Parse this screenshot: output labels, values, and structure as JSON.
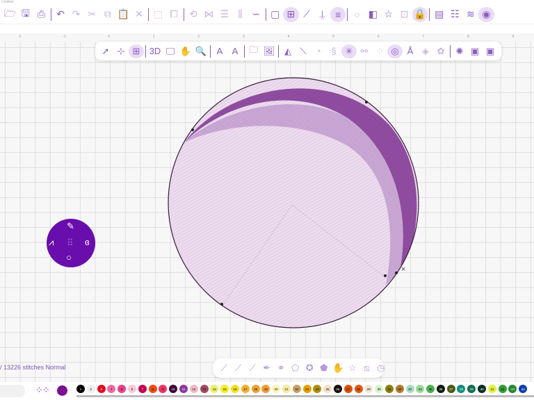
{
  "window": {
    "title": "Untitled"
  },
  "main_toolbar": {
    "groups": [
      [
        {
          "name": "open-icon",
          "g": "🗁"
        },
        {
          "name": "save-icon",
          "g": "🖫"
        },
        {
          "name": "print-icon",
          "g": "⎙"
        }
      ],
      [
        {
          "name": "undo-icon",
          "g": "↶"
        },
        {
          "name": "redo-icon",
          "g": "↷",
          "dim": true
        },
        {
          "name": "cut-icon",
          "g": "✂",
          "dim": true
        },
        {
          "name": "copy-icon",
          "g": "⧉",
          "dim": true
        },
        {
          "name": "paste-icon",
          "g": "📋"
        },
        {
          "name": "delete-icon",
          "g": "✕",
          "dim": true
        }
      ],
      [
        {
          "name": "select-all-icon",
          "g": "⬚",
          "dim": true
        },
        {
          "name": "group-icon",
          "g": "⧠",
          "dim": true
        }
      ],
      [
        {
          "name": "rotate-icon",
          "g": "⟲",
          "dim": true
        },
        {
          "name": "mirror-icon",
          "g": "⋈",
          "dim": true
        },
        {
          "name": "align-icon",
          "g": "☰",
          "dim": true
        },
        {
          "name": "distribute-icon",
          "g": "⫼",
          "dim": true
        },
        {
          "name": "path-icon",
          "g": "∽"
        }
      ],
      [
        {
          "name": "hoop-icon",
          "g": "▢"
        },
        {
          "name": "grid-icon",
          "g": "⊞",
          "act": true
        },
        {
          "name": "ruler-icon",
          "g": "⟋"
        },
        {
          "name": "measure-icon",
          "g": "⍊"
        },
        {
          "name": "units-icon",
          "g": "≡",
          "act": true
        }
      ],
      [
        {
          "name": "circle-icon",
          "g": "○",
          "dim": true
        },
        {
          "name": "color-sort-icon",
          "g": "◧"
        },
        {
          "name": "star-icon",
          "g": "☆"
        },
        {
          "name": "grid-lock-icon",
          "g": "⊡",
          "dim": true
        },
        {
          "name": "lock-icon",
          "g": "🔒",
          "act": true
        }
      ],
      [
        {
          "name": "properties-icon",
          "g": "▤"
        },
        {
          "name": "sequence-icon",
          "g": "☷"
        },
        {
          "name": "layers-icon",
          "g": "≋"
        },
        {
          "name": "thread-icon",
          "g": "◉",
          "act": true
        }
      ]
    ]
  },
  "ruler": {
    "labels": [
      "-2",
      "-1",
      "0",
      "1",
      "2",
      "3",
      "4",
      "5",
      "6",
      "7",
      "8",
      "9"
    ]
  },
  "sub_toolbar": {
    "groups": [
      [
        {
          "name": "pointer-icon",
          "g": "➚"
        },
        {
          "name": "node-select-icon",
          "g": "⊹"
        },
        {
          "name": "transform-icon",
          "g": "⊞",
          "act": true
        }
      ],
      [
        {
          "name": "3d-view-icon",
          "g": "3D"
        },
        {
          "name": "monitor-icon",
          "g": "🖵"
        },
        {
          "name": "pan-hand-icon",
          "g": "✋"
        },
        {
          "name": "zoom-icon",
          "g": "🔍"
        }
      ],
      [
        {
          "name": "text-icon",
          "g": "A"
        },
        {
          "name": "text-path-icon",
          "g": "A"
        }
      ],
      [
        {
          "name": "folder-icon",
          "g": "🗀"
        },
        {
          "name": "image-icon",
          "g": "🖼"
        }
      ],
      [
        {
          "name": "fill-shape-icon",
          "g": "◭"
        },
        {
          "name": "line-tool-icon",
          "g": "⟍"
        },
        {
          "name": "satin-icon",
          "g": "◔",
          "dim": true
        },
        {
          "name": "run-stitch-icon",
          "g": "§",
          "dim": true
        },
        {
          "name": "star-stitch-icon",
          "g": "✳",
          "act": true
        },
        {
          "name": "connect-icon",
          "g": "⚯",
          "dim": true
        },
        {
          "name": "scatter-icon",
          "g": "⁘",
          "dim": true
        },
        {
          "name": "applique-icon",
          "g": "◎",
          "act": true
        },
        {
          "name": "monogram-icon",
          "g": "Å"
        },
        {
          "name": "split-icon",
          "g": "◈",
          "dim": true
        },
        {
          "name": "remove-overlap-icon",
          "g": "✿",
          "dim": true
        }
      ],
      [
        {
          "name": "auto-digitize-icon",
          "g": "✺"
        },
        {
          "name": "edit-image-icon",
          "g": "▣"
        },
        {
          "name": "frame-icon",
          "g": "▣"
        }
      ]
    ]
  },
  "radial_menu": {
    "items": [
      {
        "name": "brush-icon",
        "g": "✎"
      },
      {
        "name": "zigzag-stitch-icon",
        "g": "⩘"
      },
      {
        "name": "curve-icon",
        "g": "ɞ"
      },
      {
        "name": "circle-shape-icon",
        "g": "○"
      },
      {
        "name": "center-handle-icon",
        "g": "⠿"
      }
    ]
  },
  "status": {
    "text": "/ 13226 stitches Normal"
  },
  "shape_toolbar": {
    "items": [
      {
        "name": "line-1-icon",
        "g": "⟋"
      },
      {
        "name": "line-2-icon",
        "g": "⟋"
      },
      {
        "name": "line-3-icon",
        "g": "⟋"
      },
      {
        "name": "pen-icon",
        "g": "✒"
      },
      {
        "name": "link-icon",
        "g": "⚭"
      },
      {
        "name": "pentagon-icon",
        "g": "⬠"
      },
      {
        "name": "badge-icon",
        "g": "✪"
      },
      {
        "name": "house-icon",
        "g": "⬟"
      },
      {
        "name": "hand-icon",
        "g": "✋"
      },
      {
        "name": "star-outline-icon",
        "g": "☆"
      },
      {
        "name": "crop-icon",
        "g": "⧅"
      },
      {
        "name": "timer-icon",
        "g": "◷"
      }
    ]
  },
  "current_color": "#7b1190",
  "palette": [
    {
      "n": "1",
      "c": "#000000",
      "t": "#fff"
    },
    {
      "n": "2",
      "c": "#eeeeee"
    },
    {
      "n": "3",
      "c": "#e0101e",
      "t": "#fff"
    },
    {
      "n": "4",
      "c": "#f06aa0"
    },
    {
      "n": "5",
      "c": "#e8408a"
    },
    {
      "n": "6",
      "c": "#f7c8d4"
    },
    {
      "n": "7",
      "c": "#c4004e",
      "t": "#fff"
    },
    {
      "n": "8",
      "c": "#f04a10"
    },
    {
      "n": "9",
      "c": "#ee3366"
    },
    {
      "n": "10",
      "c": "#3a0a3a",
      "t": "#fff"
    },
    {
      "n": "11",
      "c": "#8b3aa0",
      "t": "#fff"
    },
    {
      "n": "12",
      "c": "#f2b8c4"
    },
    {
      "n": "13",
      "c": "#a44a62"
    },
    {
      "n": "14",
      "c": "#e8f06a"
    },
    {
      "n": "15",
      "c": "#f6ec20"
    },
    {
      "n": "16",
      "c": "#f4e020"
    },
    {
      "n": "17",
      "c": "#f2b030"
    },
    {
      "n": "18",
      "c": "#f0a030"
    },
    {
      "n": "19",
      "c": "#f09a30"
    },
    {
      "n": "20",
      "c": "#f8f4b8"
    },
    {
      "n": "21",
      "c": "#f4ec9a"
    },
    {
      "n": "22",
      "c": "#c8a060"
    },
    {
      "n": "23",
      "c": "#e8a000"
    },
    {
      "n": "24",
      "c": "#b09010"
    },
    {
      "n": "25",
      "c": "#f4e0c8"
    },
    {
      "n": "26",
      "c": "#1a1010",
      "t": "#fff"
    },
    {
      "n": "27",
      "c": "#d85010"
    },
    {
      "n": "28",
      "c": "#e05810"
    },
    {
      "n": "29",
      "c": "#eee4d4"
    },
    {
      "n": "30",
      "c": "#d8f4c8"
    },
    {
      "n": "31",
      "c": "#8a8010"
    },
    {
      "n": "32",
      "c": "#b07830"
    },
    {
      "n": "33",
      "c": "#a8dcc0"
    },
    {
      "n": "34",
      "c": "#98d898"
    },
    {
      "n": "35",
      "c": "#50b050"
    },
    {
      "n": "36",
      "c": "#101c10",
      "t": "#fff"
    },
    {
      "n": "37",
      "c": "#4a5a18",
      "t": "#fff"
    },
    {
      "n": "38",
      "c": "#10907a",
      "t": "#fff"
    },
    {
      "n": "39",
      "c": "#107050",
      "t": "#fff"
    },
    {
      "n": "40",
      "c": "#0a3020",
      "t": "#fff"
    },
    {
      "n": "41",
      "c": "#e0f040"
    },
    {
      "n": "42",
      "c": "#30a030"
    },
    {
      "n": "43",
      "c": "#208a30",
      "t": "#fff"
    },
    {
      "n": "44",
      "c": "#1040b0",
      "t": "#fff"
    }
  ],
  "colors": {
    "accent": "#8a5cc0",
    "radial": "#6a0dad",
    "fill_dark": "#8e4a9e",
    "fill_mid": "#c9a7d4",
    "fill_light": "#ecdcee"
  }
}
